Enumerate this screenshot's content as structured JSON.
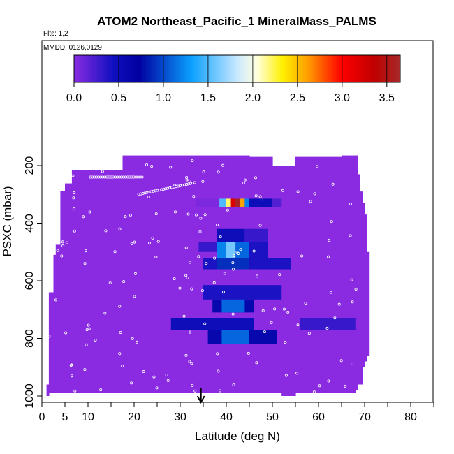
{
  "chart_data": {
    "type": "heatmap",
    "title": "ATOM2 Northeast_Pacific_1 MineralMass_PALMS",
    "flights_label": "Flts: 1,2",
    "dates_label": "MMDD: 0126,0129",
    "xlabel": "Latitude (deg N)",
    "ylabel": "PSXC (mbar)",
    "xlim": [
      0,
      85
    ],
    "ylim": [
      1000,
      100
    ],
    "x_ticks": [
      0,
      5,
      10,
      20,
      30,
      40,
      50,
      60,
      70,
      80
    ],
    "y_ticks": [
      200,
      400,
      600,
      800,
      1000
    ],
    "colorbar": {
      "range": [
        0,
        3.65
      ],
      "ticks": [
        0.0,
        0.5,
        1.0,
        1.5,
        2.0,
        2.5,
        3.0,
        3.5
      ],
      "tick_labels": [
        "0.0",
        "0.5",
        "1.0",
        "1.5",
        "2.0",
        "2.5",
        "3.0",
        "3.5"
      ]
    },
    "colors": {
      "background_field": "#8a2be2",
      "marker": "#ffffff",
      "arrow": "#000000"
    },
    "arrow_latitude": 34.5,
    "cells": [
      {
        "lat": [
          33.5,
          38.5
        ],
        "p": [
          315,
          345
        ],
        "v": 0.05
      },
      {
        "lat": [
          38.5,
          40.0
        ],
        "p": [
          315,
          345
        ],
        "v": 1.5
      },
      {
        "lat": [
          40.0,
          41.0
        ],
        "p": [
          315,
          345
        ],
        "v": 2.2
      },
      {
        "lat": [
          41.0,
          42.0
        ],
        "p": [
          315,
          345
        ],
        "v": 3.2
      },
      {
        "lat": [
          42.0,
          43.0
        ],
        "p": [
          315,
          345
        ],
        "v": 3.6
      },
      {
        "lat": [
          43.0,
          44.0
        ],
        "p": [
          315,
          345
        ],
        "v": 2.6
      },
      {
        "lat": [
          44.0,
          45.0
        ],
        "p": [
          315,
          345
        ],
        "v": 1.2
      },
      {
        "lat": [
          45.0,
          50.0
        ],
        "p": [
          315,
          345
        ],
        "v": 0.5
      },
      {
        "lat": [
          50.0,
          52.0
        ],
        "p": [
          315,
          345
        ],
        "v": 0.2
      },
      {
        "lat": [
          38.0,
          44.0
        ],
        "p": [
          420,
          465
        ],
        "v": 0.5
      },
      {
        "lat": [
          44.0,
          49.0
        ],
        "p": [
          420,
          465
        ],
        "v": 0.3
      },
      {
        "lat": [
          34.0,
          38.0
        ],
        "p": [
          465,
          500
        ],
        "v": 0.3
      },
      {
        "lat": [
          38.0,
          40.0
        ],
        "p": [
          465,
          520
        ],
        "v": 1.2
      },
      {
        "lat": [
          40.0,
          42.0
        ],
        "p": [
          465,
          520
        ],
        "v": 1.6
      },
      {
        "lat": [
          42.0,
          45.0
        ],
        "p": [
          465,
          520
        ],
        "v": 1.1
      },
      {
        "lat": [
          45.0,
          49.0
        ],
        "p": [
          465,
          520
        ],
        "v": 0.4
      },
      {
        "lat": [
          35.0,
          38.0
        ],
        "p": [
          520,
          560
        ],
        "v": 0.4
      },
      {
        "lat": [
          38.0,
          45.0
        ],
        "p": [
          520,
          560
        ],
        "v": 0.9
      },
      {
        "lat": [
          45.0,
          54.0
        ],
        "p": [
          520,
          560
        ],
        "v": 0.4
      },
      {
        "lat": [
          35.0,
          52.0
        ],
        "p": [
          615,
          665
        ],
        "v": 0.4
      },
      {
        "lat": [
          37.0,
          46.0
        ],
        "p": [
          665,
          710
        ],
        "v": 0.6
      },
      {
        "lat": [
          39.0,
          44.0
        ],
        "p": [
          665,
          710
        ],
        "v": 1.1
      },
      {
        "lat": [
          28.0,
          46.0
        ],
        "p": [
          730,
          770
        ],
        "v": 0.5
      },
      {
        "lat": [
          56.0,
          68.0
        ],
        "p": [
          730,
          770
        ],
        "v": 0.3
      },
      {
        "lat": [
          36.0,
          51.0
        ],
        "p": [
          770,
          820
        ],
        "v": 0.6
      },
      {
        "lat": [
          39.0,
          45.0
        ],
        "p": [
          770,
          820
        ],
        "v": 1.1
      }
    ]
  }
}
